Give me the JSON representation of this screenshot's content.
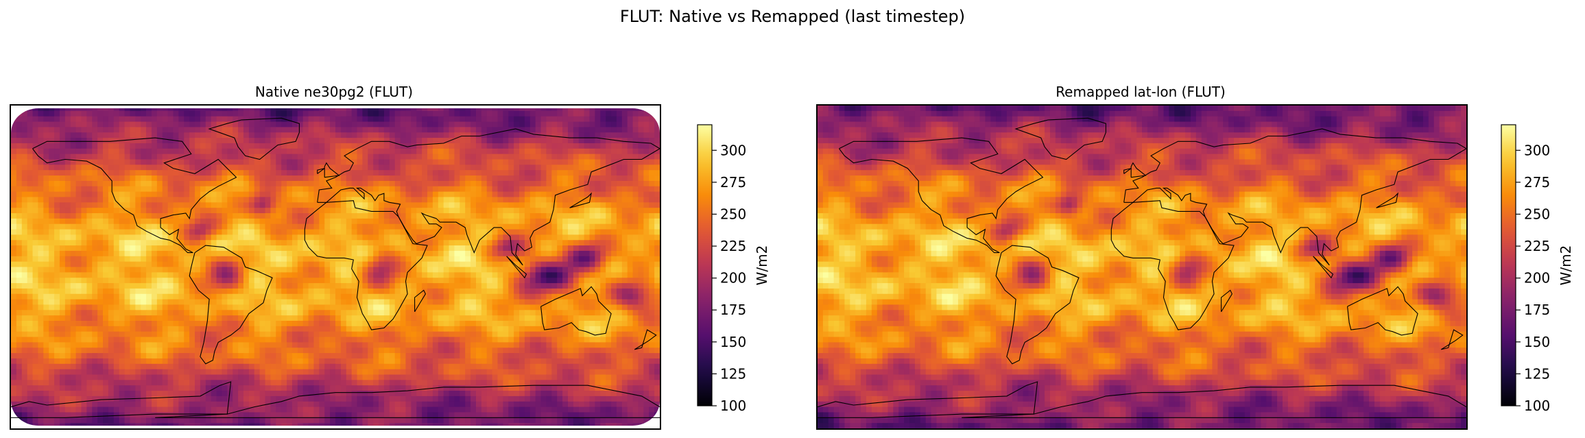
{
  "figure": {
    "suptitle": "FLUT: Native vs Remapped (last timestep)"
  },
  "chart_data": [
    {
      "type": "heatmap",
      "title": "Native ne30pg2 (FLUT)",
      "projection": "PlateCarree",
      "grid": "native ne30pg2 (cubed-sphere, rounded extent)",
      "colormap": "inferno",
      "colorbar": {
        "label": "W/m2",
        "vmin": 100,
        "vmax": 320,
        "ticks": [
          100,
          125,
          150,
          175,
          200,
          225,
          250,
          275,
          300
        ]
      },
      "coastlines": true,
      "colors": {
        "coastline": "#000000"
      }
    },
    {
      "type": "heatmap",
      "title": "Remapped lat-lon (FLUT)",
      "projection": "PlateCarree",
      "grid": "regular lat-lon",
      "colormap": "inferno",
      "colorbar": {
        "label": "W/m2",
        "vmin": 100,
        "vmax": 320,
        "ticks": [
          100,
          125,
          150,
          175,
          200,
          225,
          250,
          275,
          300
        ]
      },
      "coastlines": true,
      "colors": {
        "coastline": "#000000"
      }
    }
  ]
}
